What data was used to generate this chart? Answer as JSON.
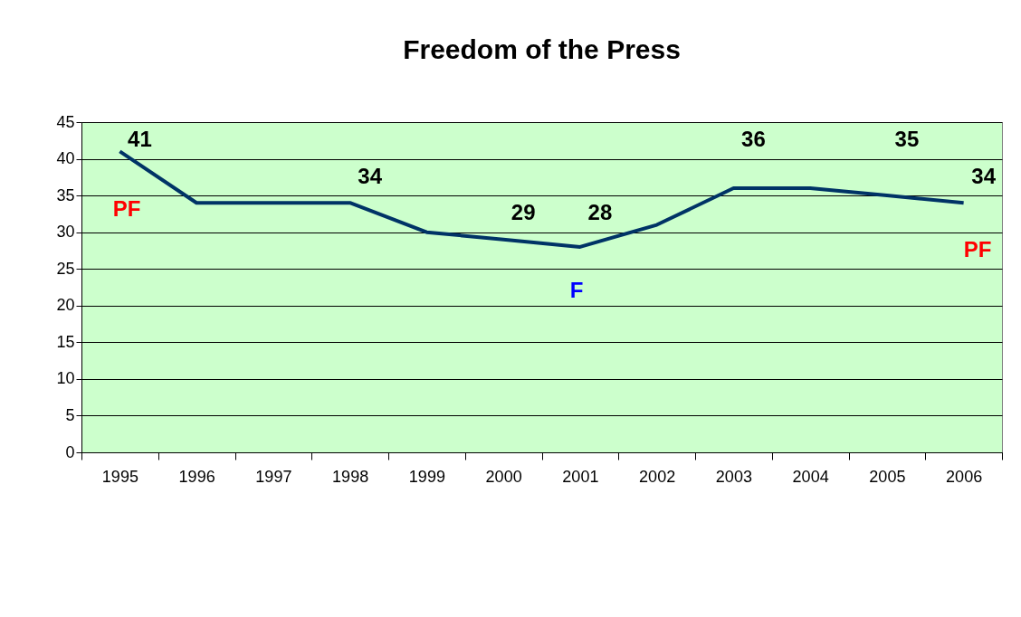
{
  "chart_data": {
    "type": "line",
    "title": "Freedom of the Press",
    "categories": [
      "1995",
      "1996",
      "1997",
      "1998",
      "1999",
      "2000",
      "2001",
      "2002",
      "2003",
      "2004",
      "2005",
      "2006"
    ],
    "series": [
      {
        "color": "#003366",
        "values": [
          41,
          34,
          34,
          34,
          30,
          29,
          28,
          31,
          36,
          36,
          35,
          34
        ],
        "value_labels": [
          "41",
          null,
          null,
          "34",
          null,
          "29",
          "28",
          null,
          "36",
          null,
          "35",
          "34"
        ]
      }
    ],
    "ylim": [
      0,
      45
    ],
    "yticks": [
      0,
      5,
      10,
      15,
      20,
      25,
      30,
      35,
      40,
      45
    ],
    "grid": "y",
    "marker": "none",
    "line_style": "solid",
    "annotations": [
      "PF",
      "F",
      "PF"
    ]
  }
}
